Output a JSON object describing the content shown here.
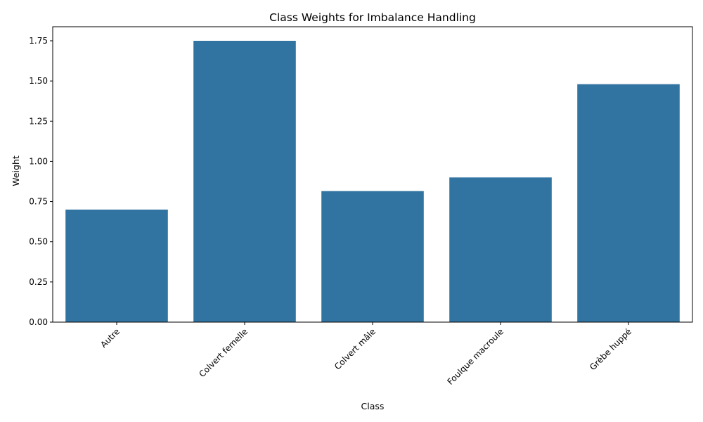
{
  "chart_data": {
    "type": "bar",
    "title": "Class Weights for Imbalance Handling",
    "xlabel": "Class",
    "ylabel": "Weight",
    "categories": [
      "Autre",
      "Colvert femelle",
      "Colvert mâle",
      "Foulque macroule",
      "Grèbe huppé"
    ],
    "values": [
      0.7,
      1.75,
      0.815,
      0.9,
      1.48
    ],
    "ylim": [
      0,
      1.8375
    ],
    "yticks": [
      "0.00",
      "0.25",
      "0.50",
      "0.75",
      "1.00",
      "1.25",
      "1.50",
      "1.75"
    ],
    "ytick_values": [
      0,
      0.25,
      0.5,
      0.75,
      1.0,
      1.25,
      1.5,
      1.75
    ],
    "bar_color": "#3274a1",
    "grid": false,
    "x_tick_rotation_deg": 45
  }
}
